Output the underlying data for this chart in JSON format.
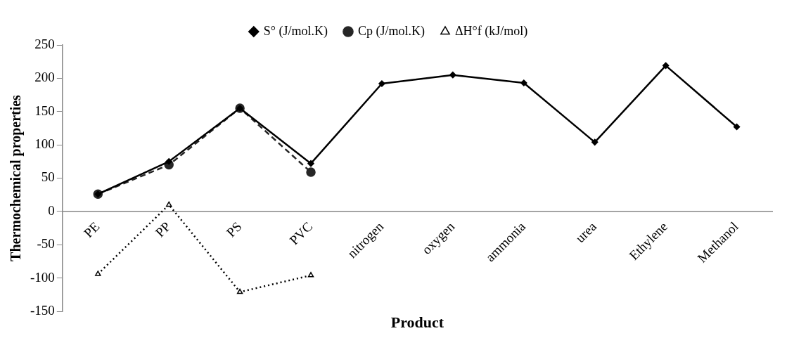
{
  "chart_data": {
    "type": "line",
    "xlabel": "Product",
    "ylabel": "Thermochemical properties",
    "categories": [
      "PE",
      "PP",
      "PS",
      "PVC",
      "nitrogen",
      "oxygen",
      "ammonia",
      "urea",
      "Ethylene",
      "Methanol"
    ],
    "series": [
      {
        "name": "S° (J/mol.K)",
        "color": "#000000",
        "marker": "diamond",
        "line_style": "solid",
        "values": [
          26,
          75,
          155,
          72,
          192,
          205,
          193,
          104,
          219,
          127
        ]
      },
      {
        "name": "Cp (J/mol.K)",
        "color": "#262626",
        "marker": "circle",
        "line_style": "dashed",
        "values": [
          26,
          70,
          155,
          59,
          null,
          null,
          null,
          null,
          null,
          null
        ]
      },
      {
        "name": "ΔH°f (kJ/mol)",
        "color": "#000000",
        "marker": "triangle",
        "line_style": "dotted",
        "values": [
          -94,
          10,
          -121,
          -96,
          null,
          null,
          null,
          null,
          null,
          null
        ]
      }
    ],
    "ylim": [
      -150,
      250
    ],
    "yticks": [
      -150,
      -100,
      -50,
      0,
      50,
      100,
      150,
      200,
      250
    ],
    "grid": false,
    "legend": "top"
  }
}
